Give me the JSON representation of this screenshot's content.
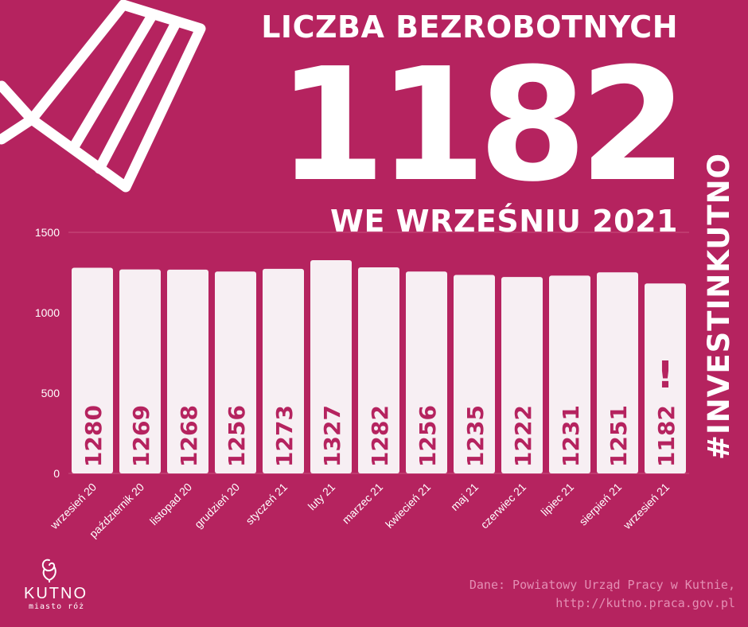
{
  "header": {
    "title": "LICZBA BEZROBOTNYCH",
    "big_number": "1182",
    "subtitle": "WE WRZEŚNIU 2021"
  },
  "hashtag": "#INVESTINKUTNO",
  "source": {
    "line1": "Dane: Powiatowy Urząd Pracy w Kutnie,",
    "line2": "http://kutno.praca.gov.pl"
  },
  "logo": {
    "name": "KUTNO",
    "tagline": "miasto róż"
  },
  "colors": {
    "background": "#b5235f",
    "bar": "#f7eff3",
    "bar_label": "#b5235f",
    "text": "#ffffff"
  },
  "chart_data": {
    "type": "bar",
    "categories": [
      "wrzesień 20",
      "październik 20",
      "listopad 20",
      "grudzień 20",
      "styczeń 21",
      "luty 21",
      "marzec 21",
      "kwiecień 21",
      "maj 21",
      "czerwiec 21",
      "lipiec 21",
      "sierpień 21",
      "wrzesień 21"
    ],
    "values": [
      1280,
      1269,
      1268,
      1256,
      1273,
      1327,
      1282,
      1256,
      1235,
      1222,
      1231,
      1251,
      1182
    ],
    "ylim": [
      0,
      1500
    ],
    "yticks": [
      0,
      500,
      1000,
      1500
    ],
    "annotation": "!",
    "grid": false
  }
}
